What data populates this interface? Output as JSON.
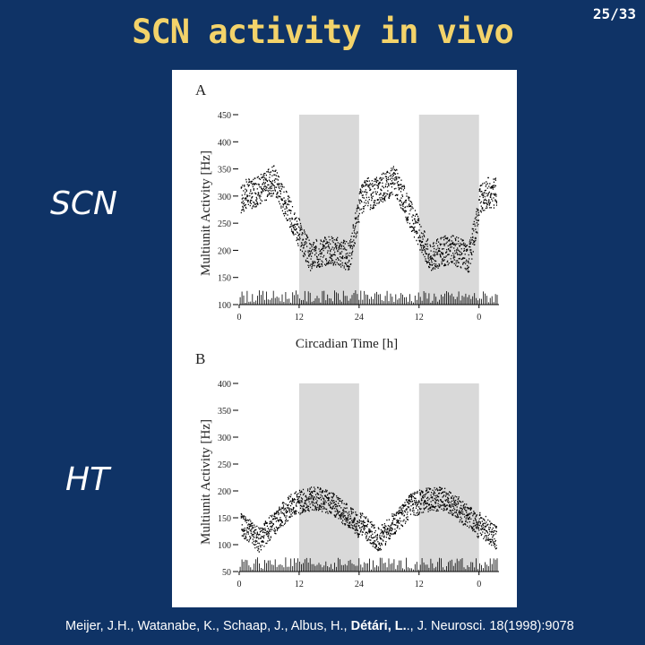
{
  "slide": {
    "title": "SCN activity in vivo",
    "page": "25/33",
    "label_top": "SCN",
    "label_bottom": "HT",
    "citation_pre": "Meijer, J.H., Watanabe, K., Schaap, J., Albus, H., ",
    "citation_bold": "Détári, L.",
    "citation_post": "., J. Neurosci. 18(1998):9078"
  },
  "colors": {
    "background": "#0f3366",
    "title": "#f3d36a",
    "text": "#ffffff",
    "shading": "#d9d9d9"
  },
  "figure": {
    "xlabel": "Circadian Time [h]",
    "x_tick_labels": [
      "0",
      "12",
      "24",
      "12",
      "0"
    ],
    "shaded_bands": [
      [
        12,
        24
      ],
      [
        36,
        48
      ]
    ],
    "panel_a": {
      "letter": "A",
      "ylabel": "Multiunit Activity [Hz]",
      "y_ticks": [
        100,
        150,
        200,
        250,
        300,
        350,
        400,
        450
      ],
      "ylim": [
        100,
        450
      ]
    },
    "panel_b": {
      "letter": "B",
      "ylabel": "Multiunit Activity [Hz]",
      "y_ticks": [
        50,
        100,
        150,
        200,
        250,
        300,
        350,
        400
      ],
      "ylim": [
        50,
        400
      ]
    }
  }
}
